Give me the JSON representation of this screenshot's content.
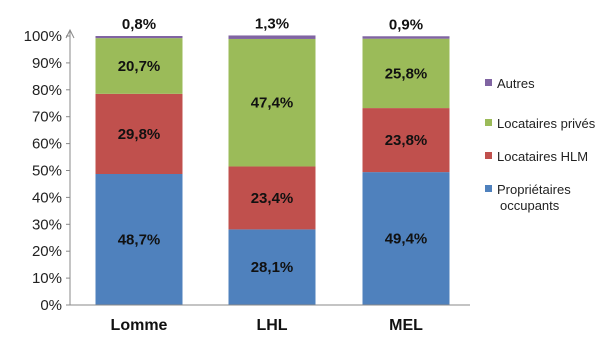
{
  "chart_data": {
    "type": "bar",
    "stacked": true,
    "categories": [
      "Lomme",
      "LHL",
      "MEL"
    ],
    "series": [
      {
        "name": "Propriétaires occupants",
        "color": "#4f81bd",
        "values": [
          48.7,
          28.1,
          49.4
        ],
        "labels": [
          "48,7%",
          "28,1%",
          "49,4%"
        ]
      },
      {
        "name": "Locataires HLM",
        "color": "#c0504d",
        "values": [
          29.8,
          23.4,
          23.8
        ],
        "labels": [
          "29,8%",
          "23,4%",
          "23,8%"
        ]
      },
      {
        "name": "Locataires privés",
        "color": "#9bbb59",
        "values": [
          20.7,
          47.4,
          25.8
        ],
        "labels": [
          "20,7%",
          "47,4%",
          "25,8%"
        ]
      },
      {
        "name": "Autres",
        "color": "#8064a2",
        "values": [
          0.8,
          1.3,
          0.9
        ],
        "labels": [
          "0,8%",
          "1,3%",
          "0,9%"
        ]
      }
    ],
    "legend_order": [
      "Autres",
      "Locataires privés",
      "Locataires HLM",
      "Propriétaires occupants"
    ],
    "y_ticks": [
      "0%",
      "10%",
      "20%",
      "30%",
      "40%",
      "50%",
      "60%",
      "70%",
      "80%",
      "90%",
      "100%"
    ],
    "ylim": [
      0,
      100
    ],
    "grid": false,
    "legend_position": "right",
    "title": "",
    "xlabel": "",
    "ylabel": ""
  }
}
